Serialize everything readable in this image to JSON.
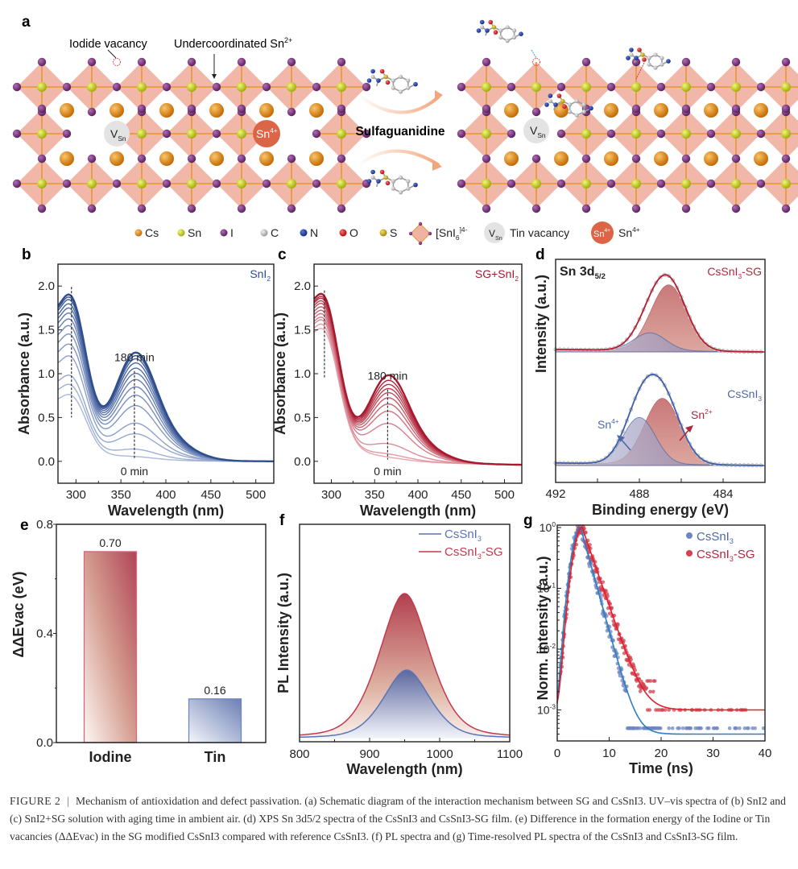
{
  "panel_labels": [
    "a",
    "b",
    "c",
    "d",
    "e",
    "f",
    "g"
  ],
  "panel_a": {
    "callouts": {
      "iodide_vacancy": "Iodide vacancy",
      "undercoordinated": "Undercoordinated Sn",
      "undercoordinated_sup": "2+"
    },
    "vacancy_label_main": "V",
    "vacancy_label_sub": "Sn",
    "sn4_label_main": "Sn",
    "sn4_label_sup": "4+",
    "reagent": "Sulfaguanidine",
    "legend": [
      {
        "name": "cs",
        "label": "Cs",
        "color": "#d9820f"
      },
      {
        "name": "sn",
        "label": "Sn",
        "color": "#c8d21a"
      },
      {
        "name": "i",
        "label": "I",
        "color": "#7b3a7e"
      },
      {
        "name": "c",
        "label": "C",
        "color": "#bdbdbd"
      },
      {
        "name": "n",
        "label": "N",
        "color": "#1f3fa0"
      },
      {
        "name": "o",
        "label": "O",
        "color": "#d81e1e"
      },
      {
        "name": "s",
        "label": "S",
        "color": "#c9a81a"
      }
    ],
    "legend_octa_label": "[SnI",
    "legend_octa_sub": "6",
    "legend_octa_sup": "]4-",
    "legend_vac_label": "Tin vacancy",
    "legend_sn4_label": "Sn",
    "legend_sn4_sup": "4+",
    "colors": {
      "octahedron": "#f0b3a3",
      "bond": "#e8962e",
      "vacancy": "#e3e3e3",
      "sn4": "#dd6547",
      "arrow": "#f2a67c"
    }
  },
  "chart_data": [
    {
      "id": "b",
      "type": "line",
      "title": "",
      "annotation": "SnI2",
      "xlabel": "Wavelength (nm)",
      "ylabel": "Absorbance (a.u.)",
      "xlim": [
        280,
        520
      ],
      "ylim": [
        -0.25,
        2.25
      ],
      "xticks": [
        300,
        350,
        400,
        450,
        500
      ],
      "yticks": [
        0.0,
        0.5,
        1.0,
        1.5,
        2.0
      ],
      "ytick_labels": [
        "0.0",
        "0.5",
        "1.0",
        "1.5",
        "2.0"
      ],
      "time_labels": {
        "start": "0 min",
        "end": "180 min"
      },
      "peaks_nm": [
        295,
        365
      ],
      "series": [
        {
          "name": "0 min",
          "peak1": 0.8,
          "peak2": 0.03
        },
        {
          "name": "t1",
          "peak1": 0.92,
          "peak2": 0.1
        },
        {
          "name": "t2",
          "peak1": 1.03,
          "peak2": 0.25
        },
        {
          "name": "t3",
          "peak1": 1.26,
          "peak2": 0.35
        },
        {
          "name": "t4",
          "peak1": 1.4,
          "peak2": 0.52
        },
        {
          "name": "t5",
          "peak1": 1.52,
          "peak2": 0.62
        },
        {
          "name": "t6",
          "peak1": 1.62,
          "peak2": 0.7
        },
        {
          "name": "t7",
          "peak1": 1.7,
          "peak2": 0.77
        },
        {
          "name": "t8",
          "peak1": 1.77,
          "peak2": 0.83
        },
        {
          "name": "t9",
          "peak1": 1.83,
          "peak2": 0.88
        },
        {
          "name": "t10",
          "peak1": 1.88,
          "peak2": 0.93
        },
        {
          "name": "t11",
          "peak1": 1.93,
          "peak2": 0.97
        },
        {
          "name": "t12",
          "peak1": 1.96,
          "peak2": 1.0
        },
        {
          "name": "180 min",
          "peak1": 1.99,
          "peak2": 1.03
        }
      ],
      "color_start": "#a8b8dc",
      "color_end": "#2f4e8e"
    },
    {
      "id": "c",
      "type": "line",
      "title": "",
      "annotation": "SG+SnI2",
      "xlabel": "Wavelength (nm)",
      "ylabel": "Absorbance (a.u.)",
      "xlim": [
        280,
        520
      ],
      "ylim": [
        -0.25,
        2.25
      ],
      "xticks": [
        300,
        350,
        400,
        450,
        500
      ],
      "yticks": [
        0.0,
        0.5,
        1.0,
        1.5,
        2.0
      ],
      "ytick_labels": [
        "0.0",
        "0.5",
        "1.0",
        "1.5",
        "2.0"
      ],
      "time_labels": {
        "start": "0 min",
        "end": "180 min"
      },
      "peaks_nm": [
        292,
        365
      ],
      "series": [
        {
          "name": "0 min",
          "peak1": 1.55,
          "peak2": 0.02
        },
        {
          "name": "t1",
          "peak1": 1.6,
          "peak2": 0.05
        },
        {
          "name": "t2",
          "peak1": 1.65,
          "peak2": 0.15
        },
        {
          "name": "t3",
          "peak1": 1.68,
          "peak2": 0.35
        },
        {
          "name": "t4",
          "peak1": 1.72,
          "peak2": 0.47
        },
        {
          "name": "t5",
          "peak1": 1.76,
          "peak2": 0.54
        },
        {
          "name": "t6",
          "peak1": 1.8,
          "peak2": 0.6
        },
        {
          "name": "t7",
          "peak1": 1.84,
          "peak2": 0.65
        },
        {
          "name": "t8",
          "peak1": 1.87,
          "peak2": 0.69
        },
        {
          "name": "t9",
          "peak1": 1.9,
          "peak2": 0.73
        },
        {
          "name": "t10",
          "peak1": 1.92,
          "peak2": 0.77
        },
        {
          "name": "180 min",
          "peak1": 1.95,
          "peak2": 0.82
        }
      ],
      "color_start": "#e8a6b0",
      "color_end": "#a8182e"
    },
    {
      "id": "d",
      "type": "line",
      "title": "Sn 3d5/2",
      "title_main": "Sn 3d",
      "title_sub": "5/2",
      "xlabel": "Binding energy (eV)",
      "ylabel": "Intensity (a.u.)",
      "xlim": [
        492,
        482
      ],
      "xticks": [
        492,
        490,
        488,
        486,
        484
      ],
      "xtick_labels": [
        "492",
        "",
        "488",
        "",
        "484"
      ],
      "series": [
        {
          "name": "CsSnI3-SG",
          "label_main": "CsSnI",
          "label_sub": "3",
          "label_suffix": "-SG",
          "sn2_center": 486.6,
          "sn2_height": 0.78,
          "sn4_center": 487.5,
          "sn4_height": 0.21,
          "width": 0.85
        },
        {
          "name": "CsSnI3",
          "label_main": "CsSnI",
          "label_sub": "3",
          "label_suffix": "",
          "sn2_center": 486.9,
          "sn2_height": 0.78,
          "sn4_center": 488.0,
          "sn4_height": 0.55,
          "width": 0.85
        }
      ],
      "annotations": [
        {
          "text": "Sn",
          "sup": "4+",
          "color": "#4d68a8"
        },
        {
          "text": "Sn",
          "sup": "2+",
          "color": "#b0283c"
        }
      ]
    },
    {
      "id": "e",
      "type": "bar",
      "title": "",
      "categories": [
        "Iodine",
        "Tin"
      ],
      "values": [
        0.7,
        0.16
      ],
      "value_labels": [
        "0.70",
        "0.16"
      ],
      "xlabel": "",
      "ylabel": "ΔΔEvac (eV)",
      "ylim": [
        0.0,
        0.8
      ],
      "yticks": [
        0.0,
        0.4,
        0.8
      ],
      "ytick_labels": [
        "0.0",
        "0.4",
        "0.8"
      ]
    },
    {
      "id": "f",
      "type": "area",
      "title": "",
      "xlabel": "Wavelength (nm)",
      "ylabel": "PL Intensity (a.u.)",
      "xlim": [
        800,
        1100
      ],
      "xticks": [
        800,
        900,
        1000,
        1100
      ],
      "xtick_labels": [
        "800",
        "900",
        "1000",
        "1100"
      ],
      "series": [
        {
          "name": "CsSnI3",
          "label_main": "CsSnI",
          "label_sub": "3",
          "label_suffix": "",
          "center": 953,
          "height": 0.34,
          "width": 35
        },
        {
          "name": "CsSnI3-SG",
          "label_main": "CsSnI",
          "label_sub": "3",
          "label_suffix": "-SG",
          "center": 950,
          "height": 0.72,
          "width": 38
        }
      ],
      "legend": "top-right"
    },
    {
      "id": "g",
      "type": "scatter",
      "title": "",
      "xlabel": "Time (ns)",
      "ylabel": "Norm. intensity (a.u.)",
      "xlim": [
        0,
        40
      ],
      "xticks": [
        0,
        10,
        20,
        30,
        40
      ],
      "xtick_labels": [
        "0",
        "10",
        "20",
        "30",
        "40"
      ],
      "yscale": "log",
      "ylim": [
        0.0003,
        1.1
      ],
      "ytick_labels": [
        {
          "base": "10",
          "exp": "0"
        },
        {
          "base": "10",
          "exp": "-1"
        },
        {
          "base": "10",
          "exp": "-2"
        },
        {
          "base": "10",
          "exp": "-3"
        }
      ],
      "series": [
        {
          "name": "CsSnI3",
          "label_main": "CsSnI",
          "label_sub": "3",
          "label_suffix": "",
          "peak_t": 4.5,
          "rise": 1.2,
          "tau": 1.4,
          "floor": 0.0004,
          "color": "#6d86c2",
          "fit_color": "#2a7fc0"
        },
        {
          "name": "CsSnI3-SG",
          "label_main": "CsSnI",
          "label_sub": "3",
          "label_suffix": "-SG",
          "peak_t": 4.8,
          "rise": 1.2,
          "tau": 1.75,
          "floor": 0.001,
          "color": "#d1424f",
          "fit_color": "#e01e2e"
        }
      ],
      "legend": "top-right"
    }
  ],
  "caption": {
    "label": "FIGURE 2",
    "separator": "|",
    "text": "Mechanism of antioxidation and defect passivation. (a) Schematic diagram of the interaction mechanism between SG and CsSnI3. UV–vis spectra of (b) SnI2 and (c) SnI2+SG solution with aging time in ambient air. (d) XPS Sn 3d5/2 spectra of the CsSnI3 and CsSnI3-SG film. (e) Difference in the formation energy of the Iodine or Tin vacancies (ΔΔEvac) in the SG modified CsSnI3 compared with reference CsSnI3. (f) PL spectra and (g) Time-resolved PL spectra of the CsSnI3 and CsSnI3-SG film."
  }
}
